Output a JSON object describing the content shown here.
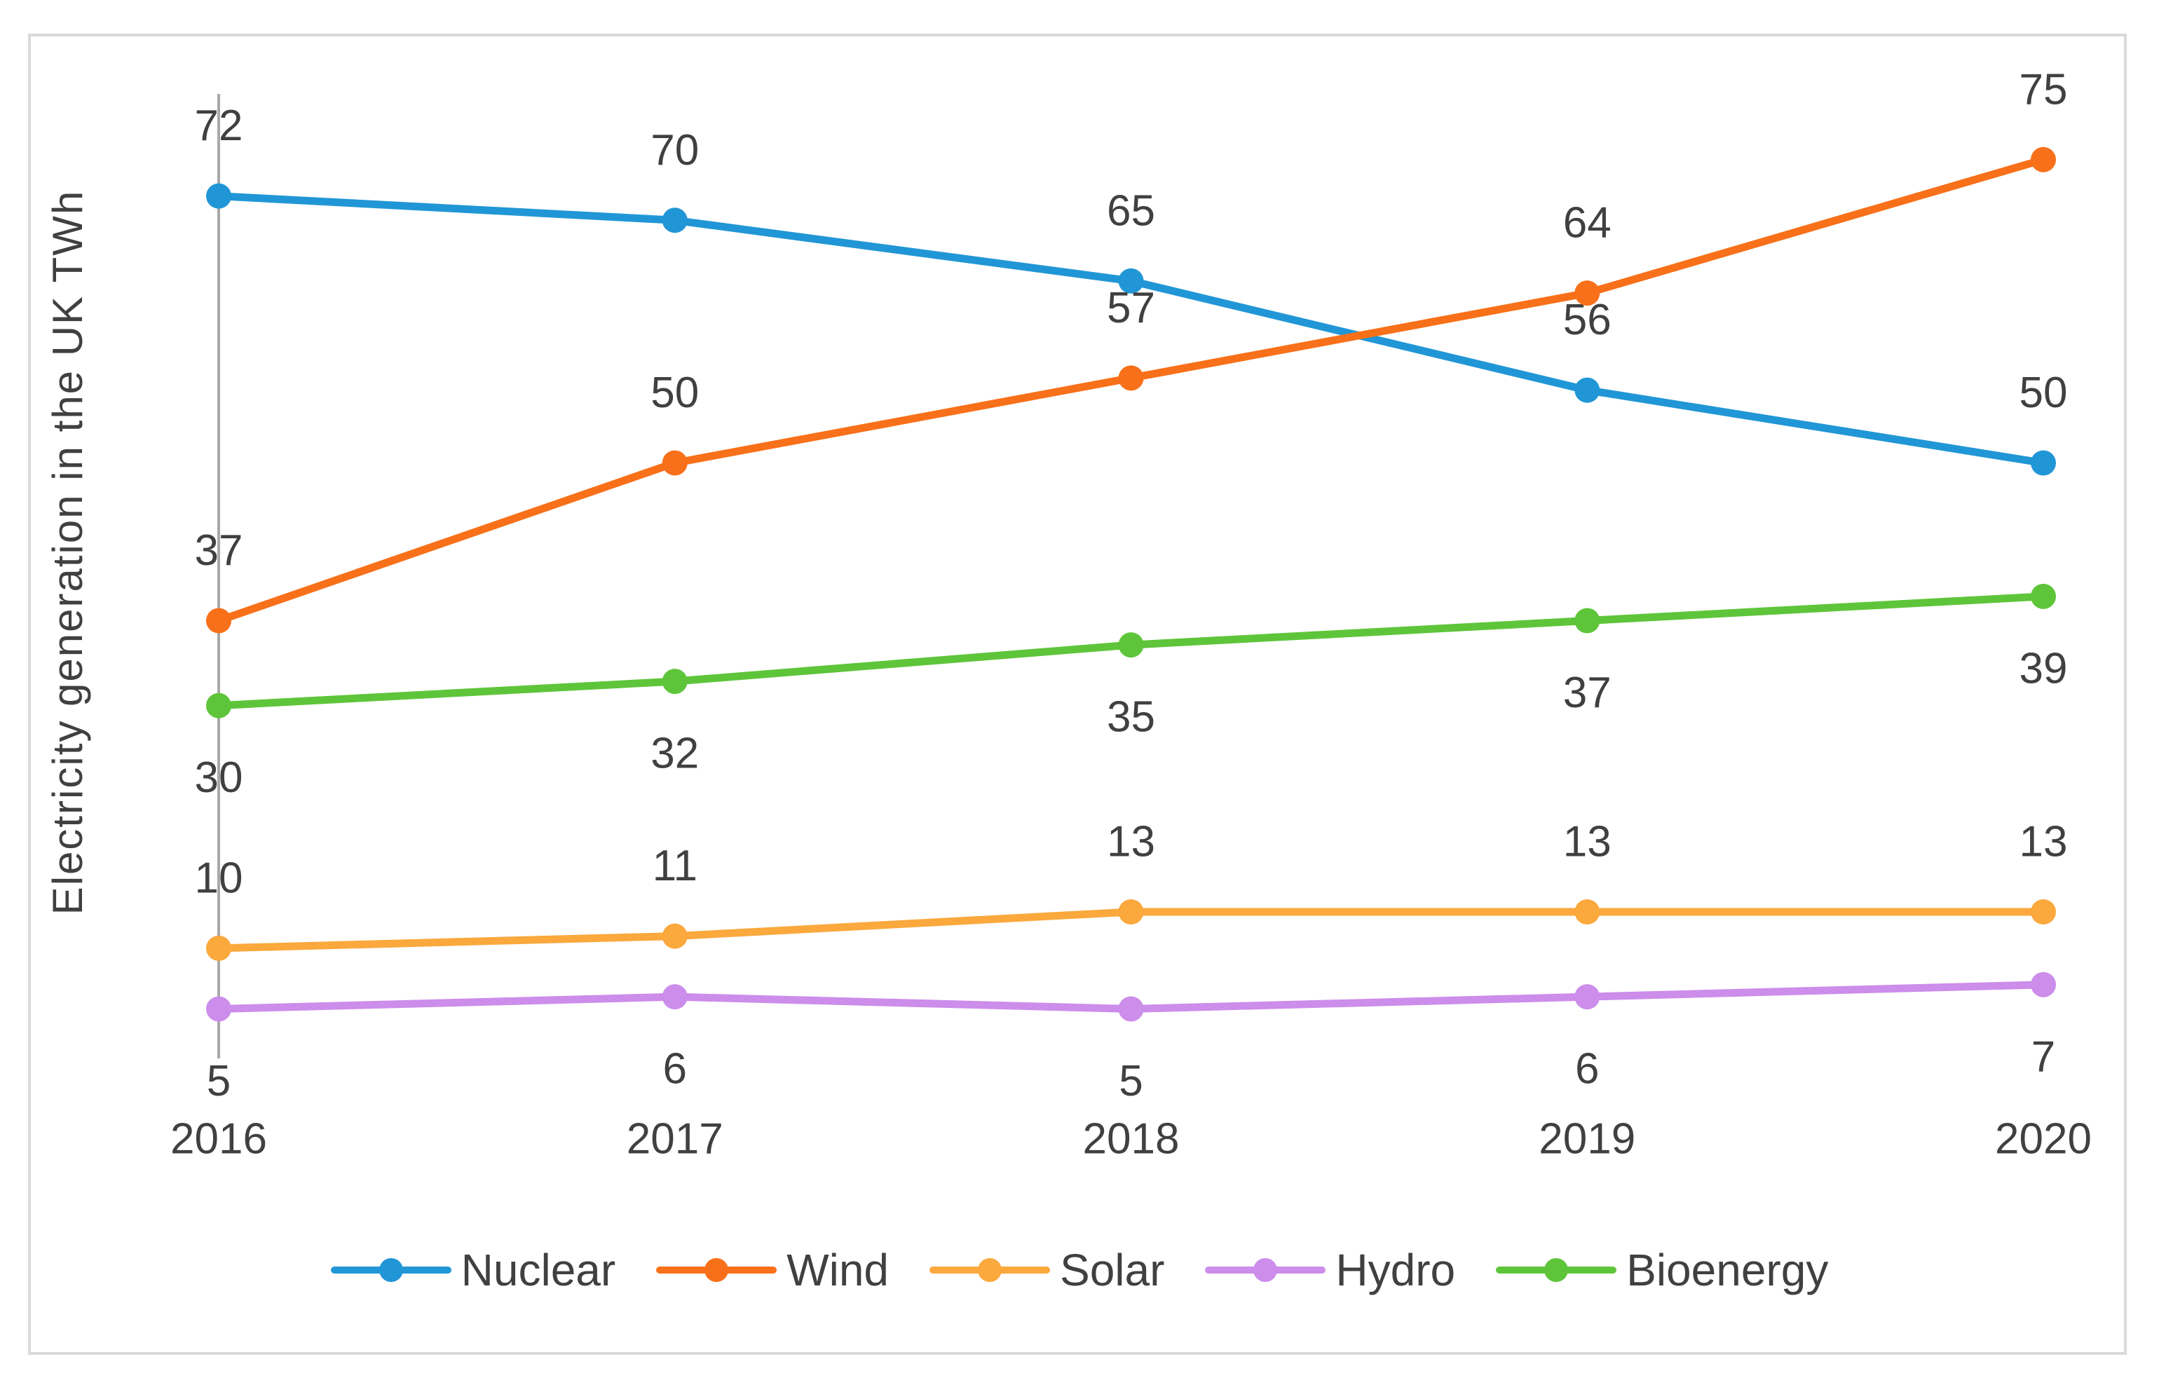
{
  "figure": {
    "y_axis_title": "Electricity generation in the UK TWh"
  },
  "chart_data": {
    "type": "line",
    "title": "",
    "xlabel": "",
    "ylabel": "Electricity generation in the UK TWh",
    "categories": [
      "2016",
      "2017",
      "2018",
      "2019",
      "2020"
    ],
    "ylim": [
      0,
      80
    ],
    "grid": false,
    "data_labels": true,
    "legend_position": "bottom",
    "axis_color": "#a8a8a8",
    "label_color": "#404040",
    "series": [
      {
        "name": "Nuclear",
        "color": "#2196d6",
        "values": [
          72,
          70,
          65,
          56,
          50
        ],
        "label_placement": "above"
      },
      {
        "name": "Wind",
        "color": "#f87019",
        "values": [
          37,
          50,
          57,
          64,
          75
        ],
        "label_placement": "above"
      },
      {
        "name": "Solar",
        "color": "#fba83d",
        "values": [
          10,
          11,
          13,
          13,
          13
        ],
        "label_placement": "above"
      },
      {
        "name": "Hydro",
        "color": "#cc8deb",
        "values": [
          5,
          6,
          5,
          6,
          7
        ],
        "label_placement": "below"
      },
      {
        "name": "Bioenergy",
        "color": "#5ec53a",
        "values": [
          30,
          32,
          35,
          37,
          39
        ],
        "label_placement": "below"
      }
    ]
  }
}
